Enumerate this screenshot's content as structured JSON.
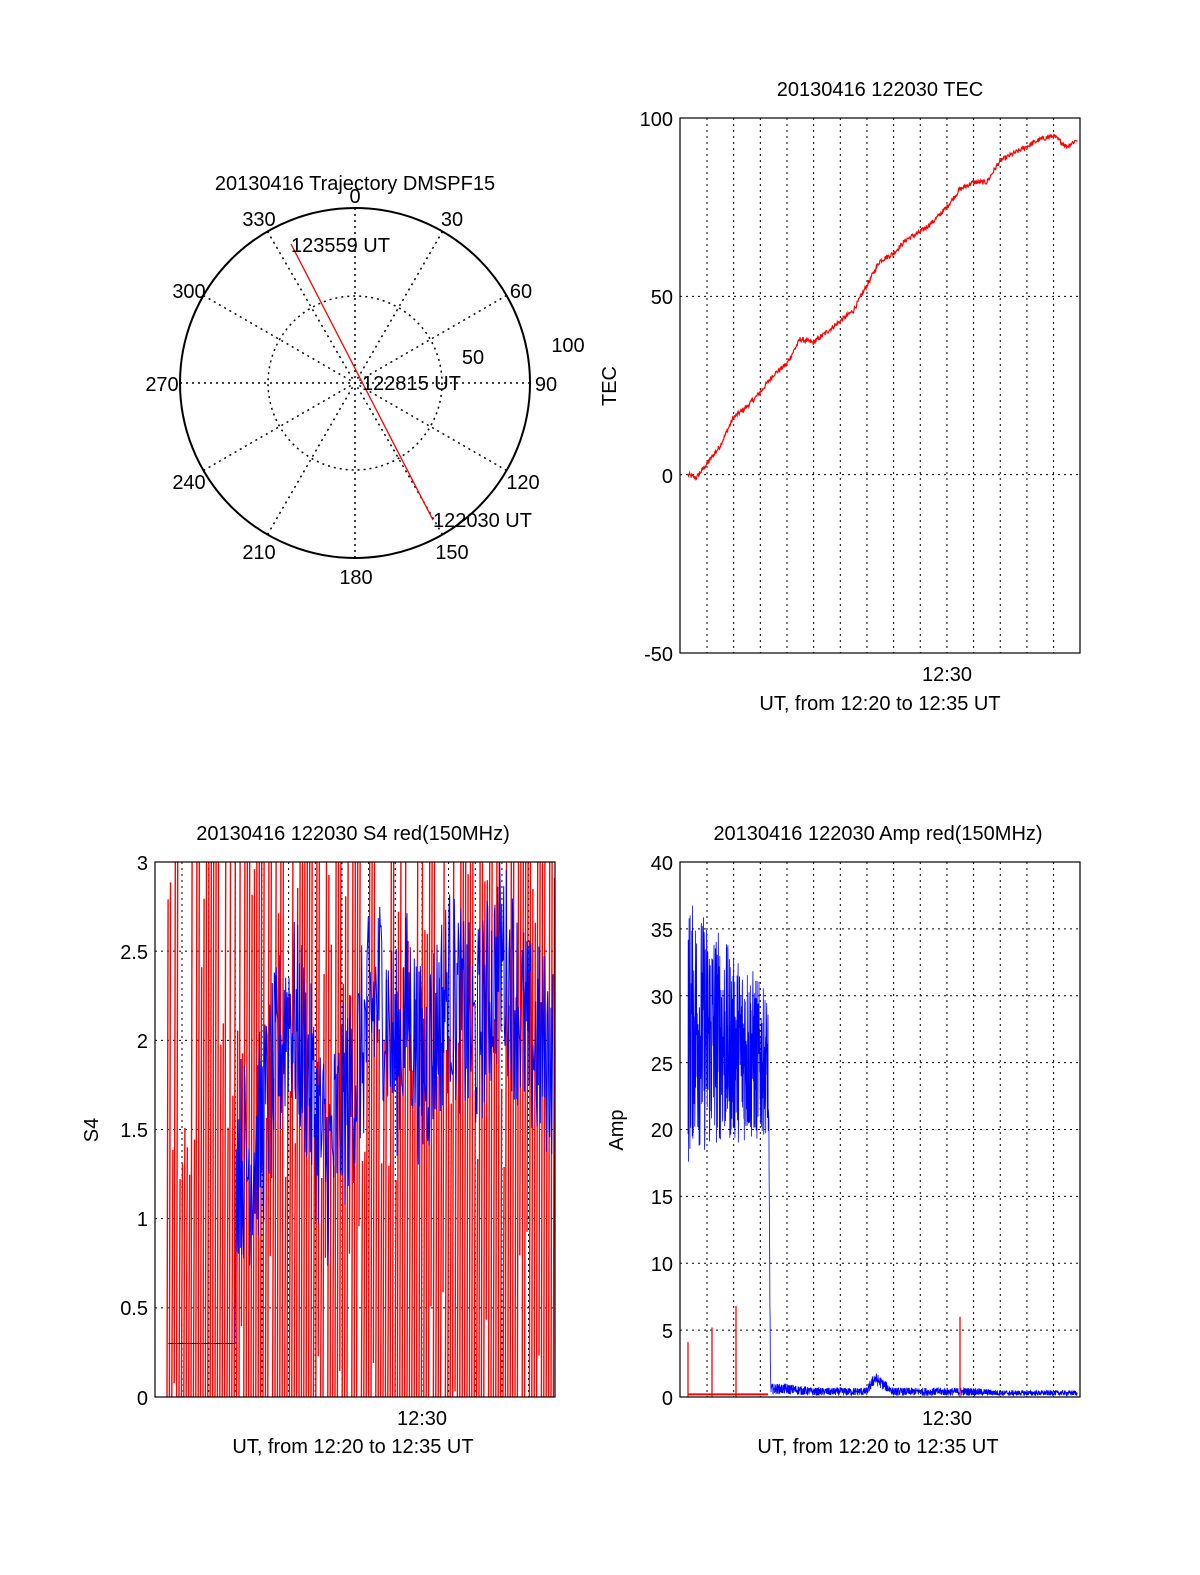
{
  "chart_data": [
    {
      "type": "polar",
      "title": "20130416 Trajectory DMSPF15",
      "angle_labels": [
        "0",
        "30",
        "60",
        "90",
        "120",
        "150",
        "180",
        "210",
        "240",
        "270",
        "300",
        "330"
      ],
      "radius_labels": [
        "50",
        "100"
      ],
      "grid": true,
      "track": {
        "color": "#ff0000",
        "points": [
          {
            "label": "123559 UT",
            "azimuth": 334,
            "elevation_radius": 95
          },
          {
            "label": "122815 UT",
            "azimuth": 150,
            "elevation_radius": 0
          },
          {
            "label": "122030 UT",
            "azimuth": 152,
            "elevation_radius": 90
          }
        ]
      }
    },
    {
      "type": "line",
      "title": "20130416 122030 TEC",
      "ylabel": "TEC",
      "xlabel": "UT, from 12:20 to 12:35 UT",
      "xtick_label": "12:30",
      "ylim": [
        -50,
        100
      ],
      "yticks": [
        "100",
        "50",
        "0",
        "-50"
      ],
      "grid": true,
      "series": [
        {
          "color": "#ff0000",
          "x": [
            0.3,
            0.6,
            1.0,
            1.5,
            2.0,
            2.5,
            3.0,
            3.5,
            4.0,
            4.5,
            5.0,
            5.5,
            6.0,
            6.5,
            7.0,
            7.5,
            8.0,
            8.5,
            9.0,
            9.5,
            10.0,
            10.5,
            11.0,
            11.5,
            12.0,
            12.5,
            13.0,
            13.5,
            14.0,
            14.5,
            14.9
          ],
          "values": [
            0,
            -1,
            3,
            8,
            16,
            19,
            23,
            28,
            31,
            38,
            37,
            40,
            43,
            46,
            53,
            60,
            62,
            66,
            68,
            71,
            75,
            80,
            82,
            82,
            88,
            90,
            92,
            94,
            95,
            92,
            94
          ]
        }
      ]
    },
    {
      "type": "line",
      "title": "20130416 122030 S4 red(150MHz)",
      "ylabel": "S4",
      "xlabel": "UT, from 12:20 to 12:35 UT",
      "xtick_label": "12:30",
      "ylim": [
        0,
        3
      ],
      "yticks": [
        "3",
        "2.5",
        "2",
        "1.5",
        "1",
        "0.5",
        "0"
      ],
      "grid": true,
      "series": [
        {
          "color": "#ff0000",
          "values_range": [
            0,
            3
          ]
        },
        {
          "color": "#0000ff",
          "x": [
            0.0,
            0.5,
            1.0,
            1.5,
            2.0,
            2.5,
            3.0,
            3.05,
            3.5,
            4.0,
            4.5,
            5.0,
            5.5,
            6.0,
            6.5,
            7.0,
            7.5,
            8.0,
            8.5,
            9.0,
            9.5,
            10.0,
            11.0,
            12.0,
            13.0,
            14.0,
            15.0
          ],
          "values": [
            0.12,
            0.12,
            0.11,
            0.12,
            0.11,
            0.12,
            0.13,
            1.4,
            1.3,
            1.5,
            1.8,
            2.2,
            2.0,
            1.6,
            1.3,
            1.6,
            1.8,
            2.1,
            2.3,
            1.9,
            2.2,
            1.8,
            2.3,
            2.0,
            2.5,
            2.0,
            1.9
          ]
        }
      ]
    },
    {
      "type": "line",
      "title": "20130416 122030 Amp red(150MHz)",
      "ylabel": "Amp",
      "xlabel": "UT, from 12:20 to 12:35 UT",
      "xtick_label": "12:30",
      "ylim": [
        0,
        40
      ],
      "yticks": [
        "40",
        "35",
        "30",
        "25",
        "20",
        "15",
        "10",
        "5",
        "0"
      ],
      "grid": true,
      "series": [
        {
          "color": "#0000ff",
          "x": [
            0.3,
            0.5,
            1.0,
            1.5,
            2.0,
            2.5,
            3.0,
            3.3,
            3.4,
            4.0,
            5.0,
            6.0,
            7.0,
            7.3,
            8.0,
            9.0,
            10.0,
            11.0,
            12.0,
            13.0,
            14.0,
            14.9
          ],
          "values": [
            27,
            28,
            27,
            27,
            26,
            26,
            25,
            25,
            0.6,
            0.6,
            0.4,
            0.4,
            0.4,
            1.4,
            0.4,
            0.4,
            0.4,
            0.4,
            0.3,
            0.3,
            0.3,
            0.3
          ],
          "spread": [
            10,
            9,
            9,
            8,
            7,
            7,
            6,
            5,
            0.4,
            0.4,
            0.3,
            0.3,
            0.3,
            0.5,
            0.3,
            0.3,
            0.3,
            0.3,
            0.2,
            0.2,
            0.2,
            0.2
          ]
        },
        {
          "color": "#ff0000",
          "baseline": 0.2,
          "x_range": [
            0.3,
            3.3
          ],
          "spikes": [
            {
              "x": 0.3,
              "value": 4.1
            },
            {
              "x": 1.2,
              "value": 5.2
            },
            {
              "x": 2.1,
              "value": 6.8
            },
            {
              "x": 10.5,
              "value": 6.0
            }
          ]
        }
      ]
    }
  ]
}
